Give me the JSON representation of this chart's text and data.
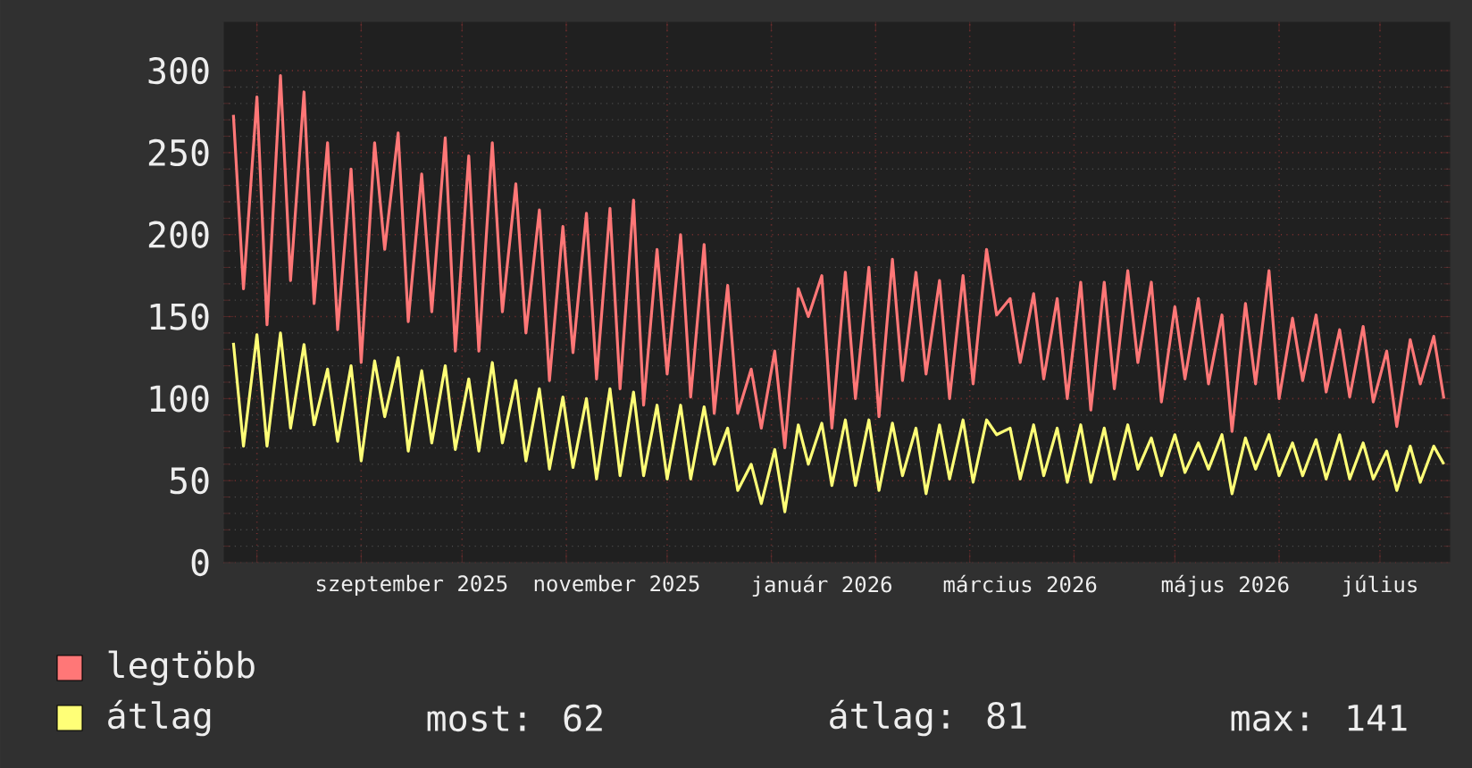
{
  "chart_data": {
    "type": "line",
    "x": [
      "2025-07-25",
      "2025-07-28",
      "2025-08-01",
      "2025-08-04",
      "2025-08-08",
      "2025-08-11",
      "2025-08-15",
      "2025-08-18",
      "2025-08-22",
      "2025-08-25",
      "2025-08-29",
      "2025-09-01",
      "2025-09-05",
      "2025-09-08",
      "2025-09-12",
      "2025-09-15",
      "2025-09-19",
      "2025-09-22",
      "2025-09-26",
      "2025-09-29",
      "2025-10-03",
      "2025-10-06",
      "2025-10-10",
      "2025-10-13",
      "2025-10-17",
      "2025-10-20",
      "2025-10-24",
      "2025-10-27",
      "2025-10-31",
      "2025-11-03",
      "2025-11-07",
      "2025-11-10",
      "2025-11-14",
      "2025-11-17",
      "2025-11-21",
      "2025-11-24",
      "2025-11-28",
      "2025-12-01",
      "2025-12-05",
      "2025-12-08",
      "2025-12-12",
      "2025-12-15",
      "2025-12-19",
      "2025-12-22",
      "2025-12-26",
      "2025-12-29",
      "2026-01-02",
      "2026-01-05",
      "2026-01-09",
      "2026-01-12",
      "2026-01-16",
      "2026-01-19",
      "2026-01-23",
      "2026-01-26",
      "2026-01-30",
      "2026-02-02",
      "2026-02-06",
      "2026-02-09",
      "2026-02-13",
      "2026-02-16",
      "2026-02-20",
      "2026-02-23",
      "2026-02-27",
      "2026-03-02",
      "2026-03-06",
      "2026-03-09",
      "2026-03-13",
      "2026-03-16",
      "2026-03-20",
      "2026-03-23",
      "2026-03-27",
      "2026-03-30",
      "2026-04-03",
      "2026-04-06",
      "2026-04-10",
      "2026-04-13",
      "2026-04-17",
      "2026-04-20",
      "2026-04-24",
      "2026-04-27",
      "2026-05-01",
      "2026-05-04",
      "2026-05-08",
      "2026-05-11",
      "2026-05-15",
      "2026-05-18",
      "2026-05-22",
      "2026-05-25",
      "2026-05-29",
      "2026-06-01",
      "2026-06-05",
      "2026-06-08",
      "2026-06-12",
      "2026-06-15",
      "2026-06-19",
      "2026-06-22",
      "2026-06-26",
      "2026-06-29",
      "2026-07-03",
      "2026-07-06",
      "2026-07-10",
      "2026-07-13",
      "2026-07-17",
      "2026-07-20"
    ],
    "xlim": [
      "2025-07-22",
      "2026-07-22"
    ],
    "xticks": [
      {
        "value": "2025-08-01",
        "label": null
      },
      {
        "value": "2025-09-01",
        "label": null
      },
      {
        "value": "2025-10-01",
        "label": null
      },
      {
        "value": "2025-11-01",
        "label": null
      },
      {
        "value": "2025-12-01",
        "label": null
      },
      {
        "value": "2026-01-01",
        "label": null
      },
      {
        "value": "2026-02-01",
        "label": null
      },
      {
        "value": "2026-03-01",
        "label": null
      },
      {
        "value": "2026-04-01",
        "label": null
      },
      {
        "value": "2026-05-01",
        "label": null
      },
      {
        "value": "2026-06-01",
        "label": null
      },
      {
        "value": "2026-07-01",
        "label": null
      },
      {
        "value": "2025-09-16",
        "label": "szeptember 2025"
      },
      {
        "value": "2025-11-16",
        "label": "november 2025"
      },
      {
        "value": "2026-01-16",
        "label": "január 2026"
      },
      {
        "value": "2026-03-16",
        "label": "március 2026"
      },
      {
        "value": "2026-05-16",
        "label": "május 2026"
      },
      {
        "value": "2026-07-01",
        "label": "július"
      }
    ],
    "ylim": [
      0,
      330
    ],
    "yticks": [
      0,
      50,
      100,
      150,
      200,
      250,
      300
    ],
    "grid": true,
    "legend": "bottom",
    "marker": "none",
    "line_style": "solid",
    "series": [
      {
        "name": "legtöbb",
        "color": "#ff7777",
        "values": [
          273,
          167,
          284,
          145,
          297,
          172,
          287,
          158,
          256,
          142,
          240,
          122,
          256,
          191,
          262,
          147,
          237,
          153,
          259,
          129,
          248,
          129,
          256,
          153,
          231,
          140,
          215,
          111,
          205,
          128,
          213,
          112,
          216,
          106,
          221,
          96,
          191,
          115,
          200,
          101,
          194,
          91,
          169,
          91,
          118,
          82,
          129,
          70,
          167,
          150,
          175,
          82,
          177,
          100,
          180,
          89,
          185,
          111,
          177,
          115,
          172,
          100,
          175,
          109,
          191,
          151,
          161,
          122,
          164,
          112,
          161,
          100,
          171,
          93,
          171,
          106,
          178,
          122,
          171,
          98,
          156,
          112,
          161,
          109,
          151,
          80,
          158,
          109,
          178,
          100,
          149,
          111,
          151,
          104,
          142,
          101,
          144,
          98,
          129,
          83,
          136,
          109,
          138,
          100
        ]
      },
      {
        "name": "átlag",
        "color": "#ffff77",
        "values": [
          134,
          71,
          139,
          71,
          140,
          82,
          133,
          84,
          118,
          74,
          120,
          62,
          123,
          89,
          125,
          68,
          117,
          73,
          120,
          69,
          112,
          68,
          122,
          73,
          111,
          62,
          106,
          57,
          101,
          58,
          100,
          51,
          106,
          53,
          104,
          53,
          96,
          51,
          96,
          51,
          95,
          60,
          82,
          44,
          60,
          36,
          69,
          31,
          84,
          60,
          85,
          47,
          87,
          47,
          87,
          44,
          85,
          53,
          82,
          42,
          84,
          51,
          87,
          49,
          87,
          78,
          82,
          51,
          84,
          53,
          82,
          49,
          84,
          49,
          82,
          51,
          84,
          57,
          76,
          53,
          78,
          55,
          73,
          57,
          78,
          42,
          76,
          57,
          78,
          53,
          73,
          53,
          75,
          51,
          78,
          51,
          73,
          51,
          68,
          44,
          71,
          49,
          71,
          60
        ]
      }
    ],
    "annotations": [
      "most: 62",
      "átlag: 81",
      "max: 141"
    ]
  }
}
